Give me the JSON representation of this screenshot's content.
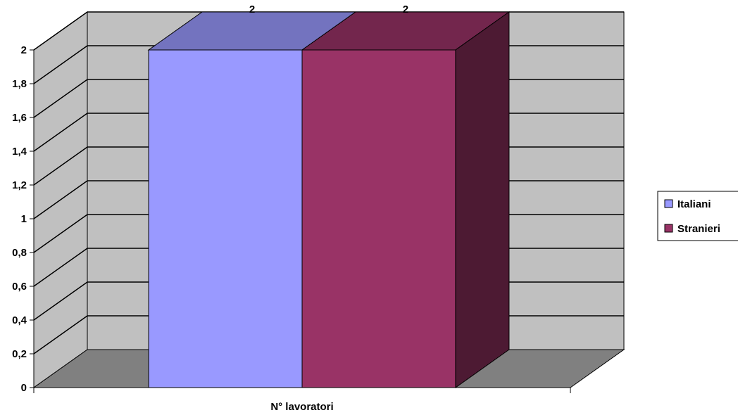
{
  "chart_data": {
    "type": "bar",
    "style": "3d-clustered-column",
    "categories": [
      "N° lavoratori"
    ],
    "series": [
      {
        "name": "Italiani",
        "values": [
          2
        ],
        "color": "#9999ff"
      },
      {
        "name": "Stranieri",
        "values": [
          2
        ],
        "color": "#993366"
      }
    ],
    "data_labels": [
      "2",
      "2"
    ],
    "y_ticks": [
      "0",
      "0,2",
      "0,4",
      "0,6",
      "0,8",
      "1",
      "1,2",
      "1,4",
      "1,6",
      "1,8",
      "2"
    ],
    "ylim": [
      0,
      2
    ],
    "title": "",
    "xlabel": "",
    "ylabel": "",
    "grid": true,
    "legend_position": "right",
    "colors": {
      "wall": "#c0c0c0",
      "floor": "#808080"
    }
  }
}
